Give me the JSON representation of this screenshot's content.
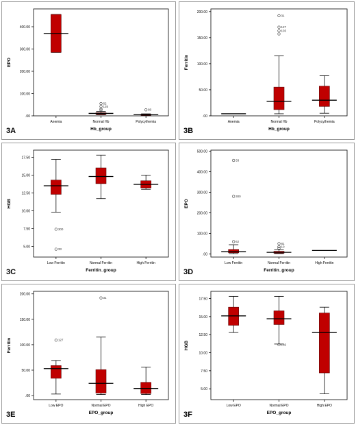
{
  "colors": {
    "box": "#c00000",
    "box_edge": "#5a0000",
    "axis": "#000000",
    "plot_bg": "#ffffff"
  },
  "chart_data": [
    {
      "panel": "3A",
      "type": "boxplot",
      "ylabel": "EPO",
      "xlabel": "Hb_group",
      "ylim": [
        0,
        480
      ],
      "yticks": [
        0,
        100,
        200,
        300,
        400
      ],
      "ytick_labels": [
        ".00",
        "100.00",
        "200.00",
        "300.00",
        "400.00"
      ],
      "categories": [
        "Anemia",
        "Normal Hb",
        "Polycythemia"
      ],
      "boxes": [
        {
          "min": 285,
          "q1": 285,
          "median": 370,
          "q3": 455,
          "max": 455
        },
        {
          "min": 5,
          "q1": 7,
          "median": 11,
          "q3": 14,
          "max": 20
        },
        {
          "min": 2,
          "q1": 3,
          "median": 5,
          "q3": 7,
          "max": 9
        }
      ],
      "outliers": [
        {
          "cat": 1,
          "y": 55,
          "label": "62"
        },
        {
          "cat": 1,
          "y": 42,
          "label": "135"
        },
        {
          "cat": 1,
          "y": 30,
          "label": ""
        },
        {
          "cat": 1,
          "y": 26,
          "label": ""
        },
        {
          "cat": 2,
          "y": 27,
          "label": "80"
        }
      ]
    },
    {
      "panel": "3B",
      "type": "boxplot",
      "ylabel": "Ferritin",
      "xlabel": "Hb_group",
      "ylim": [
        0,
        205
      ],
      "yticks": [
        0,
        50,
        100,
        150,
        200
      ],
      "ytick_labels": [
        ".00",
        "50.00",
        "100.00",
        "150.00",
        "200.00"
      ],
      "categories": [
        "Anemia",
        "Normal Hb",
        "Polycythemia"
      ],
      "boxes": [
        {
          "min": 4,
          "q1": 4,
          "median": 4,
          "q3": 4,
          "max": 4
        },
        {
          "min": 4,
          "q1": 12,
          "median": 28,
          "q3": 55,
          "max": 115
        },
        {
          "min": 5,
          "q1": 18,
          "median": 30,
          "q3": 57,
          "max": 77
        }
      ],
      "outliers": [
        {
          "cat": 1,
          "y": 192,
          "label": "31"
        },
        {
          "cat": 1,
          "y": 170,
          "label": "127"
        },
        {
          "cat": 1,
          "y": 163,
          "label": "103"
        },
        {
          "cat": 1,
          "y": 157,
          "label": ""
        }
      ]
    },
    {
      "panel": "3C",
      "type": "boxplot",
      "ylabel": "HGB",
      "xlabel": "Ferritin_group",
      "ylim": [
        3.5,
        18.5
      ],
      "yticks": [
        5,
        7.5,
        10,
        12.5,
        15,
        17.5
      ],
      "ytick_labels": [
        "5.00",
        "7.50",
        "10.00",
        "12.50",
        "15.00",
        "17.50"
      ],
      "categories": [
        "Low Ferritin",
        "Normal Ferritin",
        "High Ferritin"
      ],
      "boxes": [
        {
          "min": 9.8,
          "q1": 12.3,
          "median": 13.5,
          "q3": 14.3,
          "max": 17.2
        },
        {
          "min": 11.7,
          "q1": 13.8,
          "median": 14.8,
          "q3": 16.0,
          "max": 17.8
        },
        {
          "min": 13.0,
          "q1": 13.2,
          "median": 13.7,
          "q3": 14.2,
          "max": 15.0
        }
      ],
      "outliers": [
        {
          "cat": 0,
          "y": 7.4,
          "label": "300"
        },
        {
          "cat": 0,
          "y": 4.6,
          "label": "33"
        }
      ]
    },
    {
      "panel": "3D",
      "type": "boxplot",
      "ylabel": "EPO",
      "xlabel": "Ferritin_group",
      "ylim": [
        -15,
        505
      ],
      "yticks": [
        0,
        100,
        200,
        300,
        400,
        500
      ],
      "ytick_labels": [
        ".00",
        "100.00",
        "200.00",
        "300.00",
        "400.00",
        "500.00"
      ],
      "categories": [
        "Low Ferritin",
        "Normal Ferritin",
        "High Ferritin"
      ],
      "boxes": [
        {
          "min": 2,
          "q1": 6,
          "median": 11,
          "q3": 22,
          "max": 45
        },
        {
          "min": 2,
          "q1": 4,
          "median": 8,
          "q3": 13,
          "max": 20
        },
        {
          "min": 17,
          "q1": 17,
          "median": 17,
          "q3": 17,
          "max": 17
        }
      ],
      "outliers": [
        {
          "cat": 0,
          "y": 455,
          "label": "33"
        },
        {
          "cat": 0,
          "y": 280,
          "label": "300"
        },
        {
          "cat": 0,
          "y": 60,
          "label": "62"
        },
        {
          "cat": 1,
          "y": 50,
          "label": "81"
        },
        {
          "cat": 1,
          "y": 35,
          "label": "10"
        },
        {
          "cat": 1,
          "y": 28,
          "label": ""
        }
      ]
    },
    {
      "panel": "3E",
      "type": "boxplot",
      "ylabel": "Ferritin",
      "xlabel": "EPO_group",
      "ylim": [
        -8,
        205
      ],
      "yticks": [
        0,
        50,
        100,
        150,
        200
      ],
      "ytick_labels": [
        ".00",
        "50.00",
        "100.00",
        "150.00",
        "200.00"
      ],
      "categories": [
        "Low EPO",
        "Normal EPO",
        "High EPO"
      ],
      "boxes": [
        {
          "min": 3,
          "q1": 34,
          "median": 53,
          "q3": 59,
          "max": 69
        },
        {
          "min": 2,
          "q1": 5,
          "median": 24,
          "q3": 51,
          "max": 115
        },
        {
          "min": 2,
          "q1": 4,
          "median": 14,
          "q3": 26,
          "max": 56
        }
      ],
      "outliers": [
        {
          "cat": 0,
          "y": 109,
          "label": "127"
        },
        {
          "cat": 1,
          "y": 192,
          "label": "31"
        }
      ]
    },
    {
      "panel": "3F",
      "type": "boxplot",
      "ylabel": "HGB",
      "xlabel": "EPO_group",
      "ylim": [
        3.5,
        18.5
      ],
      "yticks": [
        5,
        7.5,
        10,
        12.5,
        15,
        17.5
      ],
      "ytick_labels": [
        "5.00",
        "7.50",
        "10.00",
        "12.50",
        "15.00",
        "17.50"
      ],
      "categories": [
        "Low EPO",
        "Normal EPO",
        "High EPO"
      ],
      "boxes": [
        {
          "min": 12.8,
          "q1": 13.8,
          "median": 15.1,
          "q3": 16.3,
          "max": 17.8
        },
        {
          "min": 11.2,
          "q1": 13.9,
          "median": 14.7,
          "q3": 15.8,
          "max": 17.8
        },
        {
          "min": 4.3,
          "q1": 7.2,
          "median": 12.8,
          "q3": 15.5,
          "max": 16.3
        }
      ],
      "outliers": [
        {
          "cat": 1,
          "y": 11.1,
          "label": "136"
        }
      ]
    }
  ]
}
